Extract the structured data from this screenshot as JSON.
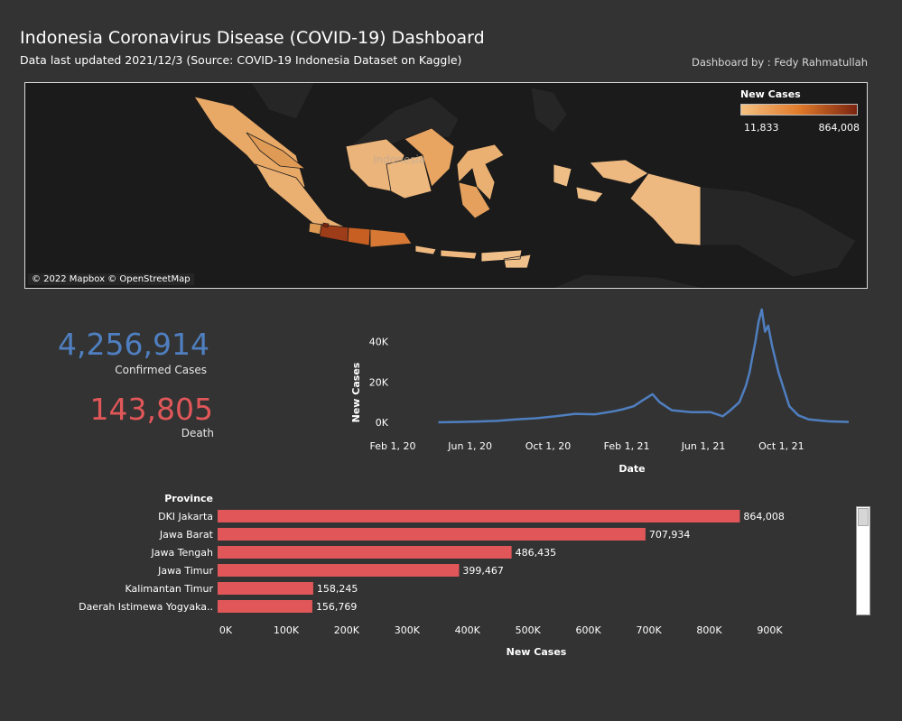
{
  "header": {
    "title": "Indonesia Coronavirus Disease (COVID-19) Dashboard",
    "subtitle": "Data last updated 2021/12/3 (Source: COVID-19 Indonesia Dataset on Kaggle)",
    "author": "Dashboard by : Fedy Rahmatullah"
  },
  "map": {
    "legend_title": "New Cases",
    "legend_min": "11,833",
    "legend_max": "864,008",
    "credit": "© 2022 Mapbox © OpenStreetMap",
    "country_label": "Indonesia",
    "colors": {
      "low": "#f5c181",
      "mid": "#e07a2a",
      "high": "#7a2410",
      "background": "#1b1b1b",
      "land": "#262626"
    }
  },
  "kpis": {
    "confirmed_value": "4,256,914",
    "confirmed_label": "Confirmed Cases",
    "confirmed_color": "#4f7fc0",
    "death_value": "143,805",
    "death_label": "Death",
    "death_color": "#e15759"
  },
  "chart_data": [
    {
      "type": "line",
      "xlabel": "Date",
      "ylabel": "New Cases",
      "x_ticks": [
        "Feb 1, 20",
        "Jun 1, 20",
        "Oct 1, 20",
        "Feb 1, 21",
        "Jun 1, 21",
        "Oct 1, 21"
      ],
      "y_ticks": [
        "0K",
        "20K",
        "40K"
      ],
      "ylim": [
        0,
        56000
      ],
      "xlim": [
        "2020-02-01",
        "2021-12-03"
      ],
      "color": "#4f7fc0",
      "series": [
        {
          "x": [
            "2020-03-01",
            "2020-04-01",
            "2020-05-01",
            "2020-06-01",
            "2020-07-01",
            "2020-08-01",
            "2020-09-01",
            "2020-10-01",
            "2020-11-01",
            "2020-12-01",
            "2020-12-15",
            "2021-01-01",
            "2021-01-15",
            "2021-01-30",
            "2021-02-10",
            "2021-03-01",
            "2021-04-01",
            "2021-05-01",
            "2021-05-20",
            "2021-06-01",
            "2021-06-15",
            "2021-06-25",
            "2021-07-01",
            "2021-07-05",
            "2021-07-10",
            "2021-07-15",
            "2021-07-20",
            "2021-07-25",
            "2021-07-30",
            "2021-08-05",
            "2021-08-15",
            "2021-09-01",
            "2021-09-15",
            "2021-10-01",
            "2021-11-01",
            "2021-12-03"
          ],
          "y": [
            0,
            200,
            400,
            700,
            1500,
            2000,
            3000,
            4200,
            4000,
            5500,
            6500,
            8000,
            11000,
            14000,
            10000,
            6000,
            5000,
            5000,
            3000,
            6000,
            10000,
            18000,
            25000,
            32000,
            40000,
            50000,
            56000,
            45000,
            48000,
            38000,
            25000,
            8000,
            3500,
            1500,
            500,
            200
          ]
        }
      ]
    },
    {
      "type": "bar",
      "orientation": "horizontal",
      "header": "Province",
      "xlabel": "New Cases",
      "x_ticks": [
        "0K",
        "100K",
        "200K",
        "300K",
        "400K",
        "500K",
        "600K",
        "700K",
        "800K",
        "900K"
      ],
      "xlim": [
        0,
        980000
      ],
      "color": "#e15759",
      "categories": [
        "DKI Jakarta",
        "Jawa Barat",
        "Jawa Tengah",
        "Jawa Timur",
        "Kalimantan Timur",
        "Daerah Istimewa Yogyaka.."
      ],
      "values": [
        864008,
        707934,
        486435,
        399467,
        158245,
        156769
      ],
      "value_labels": [
        "864,008",
        "707,934",
        "486,435",
        "399,467",
        "158,245",
        "156,769"
      ]
    }
  ]
}
